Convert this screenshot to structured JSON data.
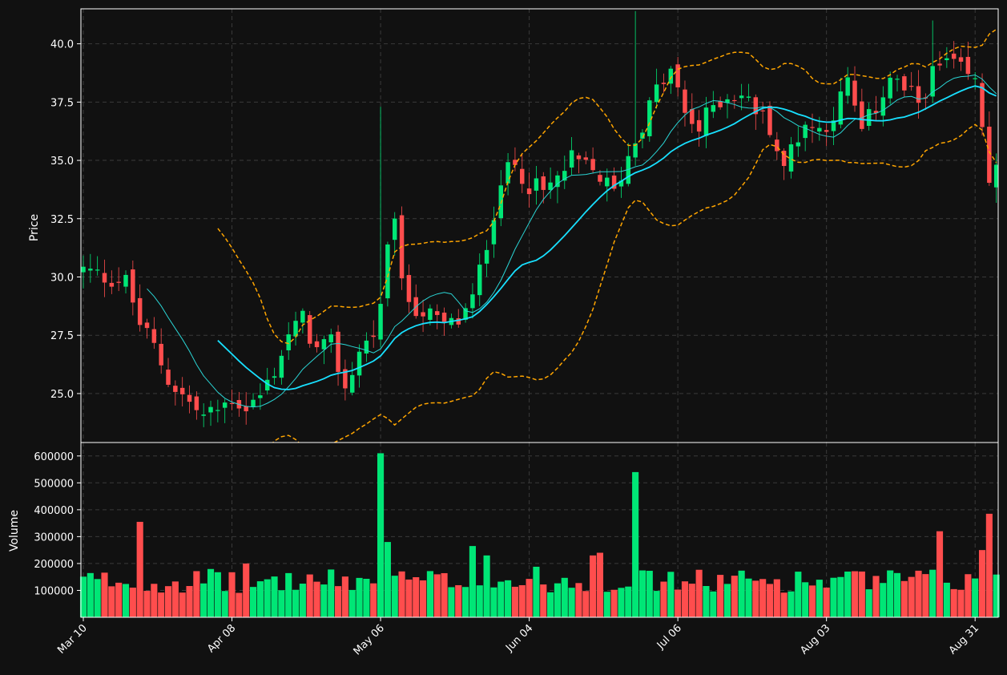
{
  "chart_data": {
    "type": "candlestick",
    "colors": {
      "background": "#111111",
      "up": "#00e676",
      "down": "#ff4d4d",
      "ma_fast": "#2ad4d4",
      "ma_slow": "#18e0ff",
      "bollinger": "#ffa500",
      "grid": "#3a3a3a",
      "axis": "#ffffff"
    },
    "price_panel": {
      "ylabel": "Price",
      "ylim": [
        22.9,
        41.5
      ],
      "yticks": [
        25.0,
        27.5,
        30.0,
        32.5,
        35.0,
        37.5,
        40.0
      ],
      "ytick_labels": [
        "25.0",
        "27.5",
        "30.0",
        "32.5",
        "35.0",
        "37.5",
        "40.0"
      ],
      "grid": true
    },
    "volume_panel": {
      "ylabel": "Volume",
      "ylim": [
        0,
        650000
      ],
      "yticks": [
        100000,
        200000,
        300000,
        400000,
        500000,
        600000
      ],
      "ytick_labels": [
        "100000",
        "200000",
        "300000",
        "400000",
        "500000",
        "600000"
      ],
      "grid": true
    },
    "xaxis": {
      "n_bars": 130,
      "ticks": [
        {
          "index": 0,
          "label": "Mar 10"
        },
        {
          "index": 21,
          "label": "Apr 08"
        },
        {
          "index": 42,
          "label": "May 06"
        },
        {
          "index": 63,
          "label": "Jun 04"
        },
        {
          "index": 84,
          "label": "Jul 06"
        },
        {
          "index": 105,
          "label": "Aug 03"
        },
        {
          "index": 126,
          "label": "Aug 31"
        }
      ]
    },
    "price_anchors": [
      [
        0,
        30.3
      ],
      [
        3,
        30.0
      ],
      [
        6,
        29.8
      ],
      [
        8,
        28.0
      ],
      [
        10,
        27.0
      ],
      [
        12,
        25.6
      ],
      [
        15,
        24.6
      ],
      [
        17,
        24.0
      ],
      [
        19,
        24.3
      ],
      [
        21,
        24.8
      ],
      [
        23,
        24.4
      ],
      [
        25,
        24.9
      ],
      [
        27,
        26.0
      ],
      [
        29,
        27.5
      ],
      [
        31,
        28.2
      ],
      [
        33,
        26.8
      ],
      [
        35,
        27.1
      ],
      [
        37,
        25.2
      ],
      [
        39,
        26.8
      ],
      [
        41,
        27.6
      ],
      [
        42,
        28.5
      ],
      [
        43,
        31.0
      ],
      [
        44,
        32.8
      ],
      [
        45,
        29.5
      ],
      [
        47,
        28.7
      ],
      [
        49,
        28.3
      ],
      [
        51,
        27.9
      ],
      [
        53,
        28.1
      ],
      [
        55,
        29.0
      ],
      [
        57,
        31.5
      ],
      [
        59,
        34.2
      ],
      [
        61,
        34.8
      ],
      [
        63,
        34.0
      ],
      [
        65,
        33.6
      ],
      [
        67,
        34.2
      ],
      [
        69,
        35.0
      ],
      [
        71,
        34.7
      ],
      [
        73,
        34.3
      ],
      [
        75,
        33.6
      ],
      [
        77,
        35.2
      ],
      [
        79,
        36.6
      ],
      [
        81,
        38.0
      ],
      [
        83,
        38.8
      ],
      [
        85,
        37.0
      ],
      [
        87,
        36.3
      ],
      [
        89,
        37.4
      ],
      [
        91,
        37.8
      ],
      [
        93,
        37.8
      ],
      [
        95,
        37.2
      ],
      [
        97,
        36.5
      ],
      [
        99,
        34.5
      ],
      [
        100,
        35.6
      ],
      [
        102,
        36.6
      ],
      [
        104,
        36.3
      ],
      [
        106,
        37.0
      ],
      [
        108,
        38.3
      ],
      [
        110,
        36.2
      ],
      [
        112,
        37.3
      ],
      [
        114,
        38.6
      ],
      [
        116,
        38.0
      ],
      [
        118,
        37.5
      ],
      [
        120,
        38.7
      ],
      [
        122,
        39.2
      ],
      [
        124,
        38.8
      ],
      [
        126,
        38.3
      ],
      [
        127,
        36.5
      ],
      [
        128,
        34.3
      ],
      [
        129,
        34.5
      ],
      [
        131,
        36.0
      ]
    ],
    "volume_overrides": {
      "8": 355000,
      "42": 610000,
      "43": 280000,
      "78": 540000,
      "121": 320000,
      "127": 250000,
      "128": 385000,
      "55": 265000,
      "57": 230000,
      "73": 240000,
      "72": 230000,
      "64": 188000,
      "23": 200000
    },
    "indicators": {
      "ma_fast_period": 10,
      "ma_slow_period": 20,
      "bollinger_period": 20,
      "bollinger_std": 2
    }
  }
}
